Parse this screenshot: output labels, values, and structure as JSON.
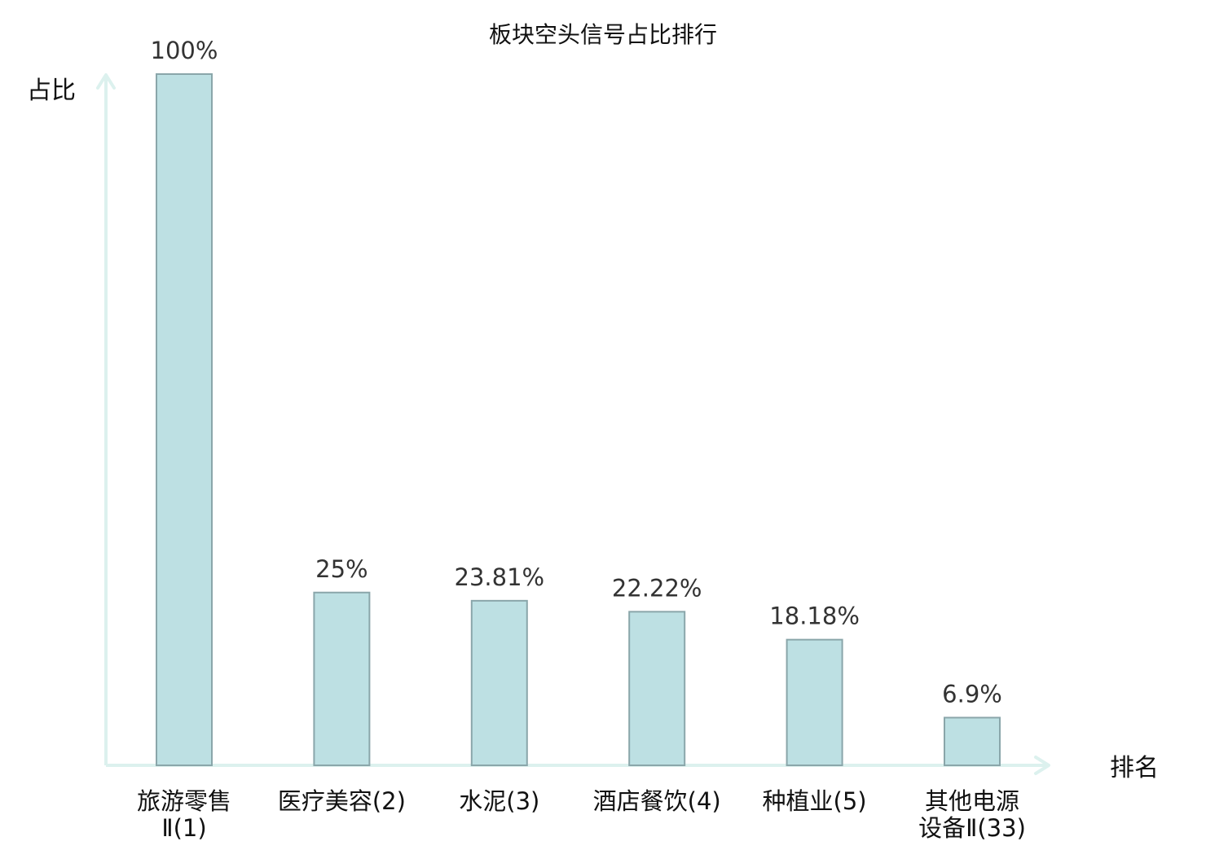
{
  "chart_data": {
    "type": "bar",
    "title": "板块空头信号占比排行",
    "ylabel": "占比",
    "xlabel": "排名",
    "ylim": [
      0,
      100
    ],
    "grid": false,
    "categories": [
      {
        "lines": [
          "旅游零售",
          "Ⅱ(1)"
        ],
        "highlight": false
      },
      {
        "lines": [
          "医疗美容(2)"
        ],
        "highlight": false
      },
      {
        "lines": [
          "水泥(3)"
        ],
        "highlight": false
      },
      {
        "lines": [
          "酒店餐饮(4)"
        ],
        "highlight": false
      },
      {
        "lines": [
          "种植业(5)"
        ],
        "highlight": false
      },
      {
        "lines": [
          "其他电源",
          "设备Ⅱ(33)"
        ],
        "highlight": true
      }
    ],
    "values": [
      100,
      25,
      23.81,
      22.22,
      18.18,
      6.9
    ],
    "value_labels": [
      "100%",
      "25%",
      "23.81%",
      "22.22%",
      "18.18%",
      "6.9%"
    ]
  },
  "colors": {
    "bar_fill": "#bde0e3",
    "bar_stroke": "#8aa6aa",
    "axis": "#dcf1ee",
    "highlight_text": "#e0141e",
    "text": "#111111"
  }
}
